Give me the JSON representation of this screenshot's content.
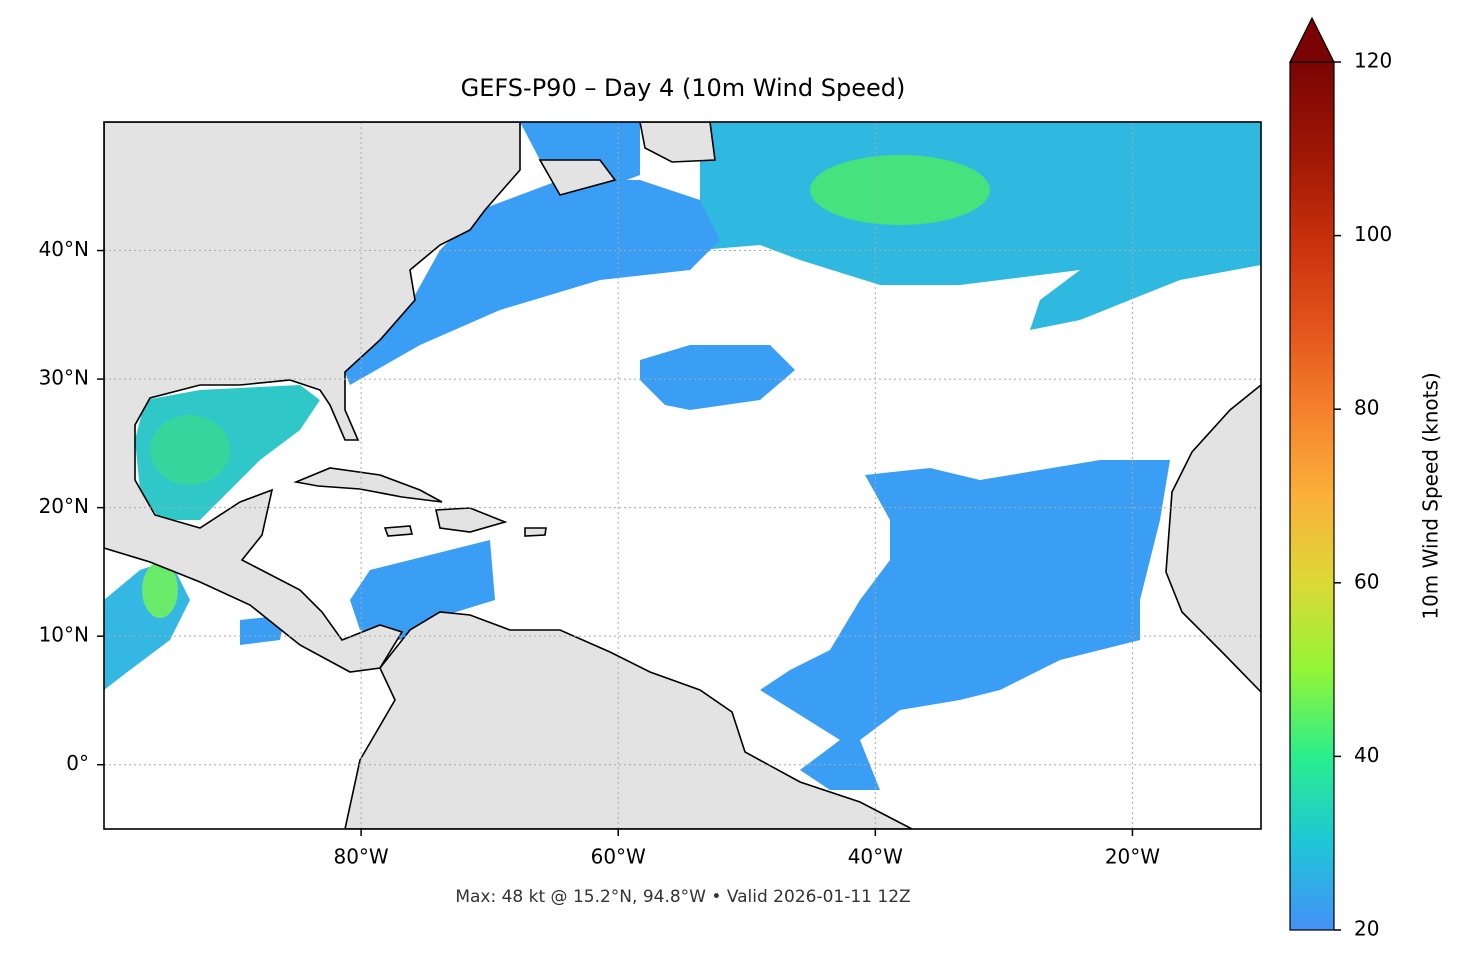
{
  "chart_data": {
    "type": "map",
    "title": "GEFS-P90 – Day 4 (10m Wind Speed)",
    "caption": "Max: 48 kt @ 15.2°N, 94.8°W • Valid 2026-01-11 12Z",
    "xlim": [
      -100,
      -10
    ],
    "ylim": [
      -5,
      50
    ],
    "xticks": [
      {
        "value": -80,
        "label": "80°W"
      },
      {
        "value": -60,
        "label": "60°W"
      },
      {
        "value": -40,
        "label": "40°W"
      },
      {
        "value": -20,
        "label": "20°W"
      }
    ],
    "yticks": [
      {
        "value": 0,
        "label": "0°"
      },
      {
        "value": 10,
        "label": "10°N"
      },
      {
        "value": 20,
        "label": "20°N"
      },
      {
        "value": 30,
        "label": "30°N"
      },
      {
        "value": 40,
        "label": "40°N"
      }
    ],
    "grid": true,
    "colorbar": {
      "label": "10m Wind Speed (knots)",
      "lim": [
        20,
        120
      ],
      "ticks": [
        20,
        40,
        60,
        80,
        100,
        120
      ],
      "extend": "max",
      "colors": [
        "#4490f8",
        "#1fc6d8",
        "#2aee8c",
        "#93f536",
        "#dcd936",
        "#fbb03a",
        "#f5802c",
        "#e2511b",
        "#c52f0c",
        "#9c1605",
        "#7a0403"
      ]
    }
  }
}
